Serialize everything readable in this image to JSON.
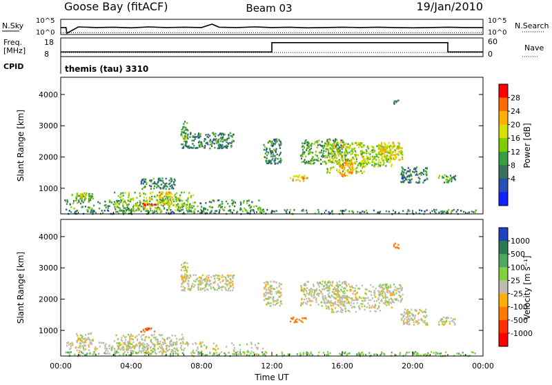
{
  "header": {
    "station": "Goose Bay (fitACF)",
    "beam": "Beam 03",
    "date": "19/Jan/2010"
  },
  "control_program": {
    "label": "CPID",
    "name": "themis (tau) 3310"
  },
  "colors": {
    "background": "#ffffff",
    "axis": "#000000",
    "ground_scatter": "#c0bcb0"
  },
  "chart_data": [
    {
      "type": "line",
      "panel": "noise",
      "left_label": "N.Sky",
      "right_label": "N.Search",
      "left_ticks": [
        "10^5",
        "10^0"
      ],
      "right_ticks": [
        "10^5",
        "10^0"
      ],
      "xlim": [
        0,
        24
      ],
      "ylim": [
        0,
        5
      ],
      "series": [
        {
          "name": "N.Sky",
          "style": "solid",
          "x": [
            0,
            0.3,
            0.35,
            1,
            2,
            3,
            4,
            5,
            6,
            7,
            8,
            8.6,
            9,
            10,
            11,
            12,
            13,
            14,
            15,
            16,
            17,
            18,
            19,
            20,
            21,
            22,
            23,
            24
          ],
          "y": [
            2.3,
            2.3,
            0.4,
            2.5,
            2.3,
            2.4,
            2.2,
            2.5,
            2.3,
            2.4,
            2.3,
            3.4,
            2.4,
            2.3,
            2.5,
            2.3,
            2.4,
            2.2,
            2.3,
            2.4,
            2.3,
            2.4,
            2.3,
            2.2,
            2.3,
            2.4,
            2.3,
            2.3
          ]
        },
        {
          "name": "N.Search",
          "style": "dotted",
          "x": [
            0,
            24
          ],
          "y": [
            0.6,
            0.6
          ]
        }
      ]
    },
    {
      "type": "line",
      "panel": "frequency",
      "left_label": "Freq.",
      "left_unit": "[MHz]",
      "right_label": "Nave",
      "left_ticks": [
        "18",
        "8"
      ],
      "right_ticks": [
        "60",
        "0"
      ],
      "xlim": [
        0,
        24
      ],
      "ylim": [
        8,
        18
      ],
      "series": [
        {
          "name": "Freq.",
          "style": "solid",
          "x": [
            0,
            12,
            12,
            22,
            22,
            24
          ],
          "y": [
            10.5,
            10.5,
            15.5,
            15.5,
            10.5,
            10.5
          ]
        },
        {
          "name": "Nave",
          "style": "dotted",
          "x": [
            0,
            24
          ],
          "y": [
            10.2,
            10.2
          ]
        }
      ]
    },
    {
      "type": "heatmap",
      "panel": "power",
      "ylabel": "Slant Range [km]",
      "ylim": [
        180,
        4550
      ],
      "yticks": [
        1000,
        2000,
        3000,
        4000
      ],
      "xlim": [
        0,
        24
      ],
      "colorbar": {
        "label": "Power [dB]",
        "ticks": [
          "28",
          "24",
          "20",
          "16",
          "12",
          "8",
          "4"
        ],
        "colors": [
          "#ff0000",
          "#ff6a00",
          "#ffb000",
          "#d8e000",
          "#80cc00",
          "#36a040",
          "#3a6f5a",
          "#2850b0",
          "#1020ff"
        ]
      },
      "patches": [
        {
          "t": [
            0.6,
            1.8
          ],
          "r": [
            600,
            900
          ],
          "power": 12
        },
        {
          "t": [
            1.0,
            1.5
          ],
          "r": [
            650,
            850
          ],
          "power": 16
        },
        {
          "t": [
            0.2,
            11.5
          ],
          "r": [
            250,
            650
          ],
          "power": 10
        },
        {
          "t": [
            3.0,
            7.5
          ],
          "r": [
            300,
            900
          ],
          "power": 14
        },
        {
          "t": [
            4.6,
            5.4
          ],
          "r": [
            380,
            560
          ],
          "power": 26
        },
        {
          "t": [
            5.5,
            6.3
          ],
          "r": [
            500,
            900
          ],
          "power": 20
        },
        {
          "t": [
            4.5,
            6.5
          ],
          "r": [
            1000,
            1350
          ],
          "power": 8
        },
        {
          "t": [
            6.8,
            9.8
          ],
          "r": [
            2300,
            2800
          ],
          "power": 8
        },
        {
          "t": [
            6.8,
            7.2
          ],
          "r": [
            2600,
            3200
          ],
          "power": 12
        },
        {
          "t": [
            11.5,
            12.5
          ],
          "r": [
            1800,
            2600
          ],
          "power": 8
        },
        {
          "t": [
            13.0,
            14.0
          ],
          "r": [
            1250,
            1450
          ],
          "power": 20
        },
        {
          "t": [
            13.6,
            16.3
          ],
          "r": [
            1800,
            2600
          ],
          "power": 10
        },
        {
          "t": [
            15.0,
            17.2
          ],
          "r": [
            1500,
            2500
          ],
          "power": 16
        },
        {
          "t": [
            15.8,
            16.6
          ],
          "r": [
            1400,
            1900
          ],
          "power": 22
        },
        {
          "t": [
            17.0,
            18.8
          ],
          "r": [
            1700,
            2400
          ],
          "power": 14
        },
        {
          "t": [
            18.0,
            19.4
          ],
          "r": [
            1900,
            2500
          ],
          "power": 18
        },
        {
          "t": [
            19.3,
            20.8
          ],
          "r": [
            1200,
            1700
          ],
          "power": 8
        },
        {
          "t": [
            21.4,
            22.4
          ],
          "r": [
            1200,
            1450
          ],
          "power": 10
        },
        {
          "t": [
            18.9,
            19.2
          ],
          "r": [
            3650,
            3850
          ],
          "power": 8
        },
        {
          "t": [
            0.2,
            23.8
          ],
          "r": [
            200,
            340
          ],
          "power": 8
        }
      ]
    },
    {
      "type": "heatmap",
      "panel": "velocity",
      "ylabel": "Slant Range [km]",
      "xlabel": "Time UT",
      "ylim": [
        180,
        4550
      ],
      "yticks": [
        1000,
        2000,
        3000,
        4000
      ],
      "xlim": [
        0,
        24
      ],
      "xticks": [
        "00:00",
        "04:00",
        "08:00",
        "12:00",
        "16:00",
        "20:00",
        "00:00"
      ],
      "colorbar": {
        "label": "Velocity [m s⁻¹]",
        "ticks": [
          "1000",
          "500",
          "100",
          "25",
          "-25",
          "-100",
          "-500",
          "-1000"
        ],
        "colors": [
          "#2040c0",
          "#2a7a50",
          "#50a860",
          "#80d040",
          "#c0bcb0",
          "#ffb000",
          "#ff7a00",
          "#ff3000",
          "#ff0000"
        ]
      },
      "patches": [
        {
          "t": [
            0.8,
            1.8
          ],
          "r": [
            600,
            950
          ],
          "velocity": 0
        },
        {
          "t": [
            0.2,
            11.5
          ],
          "r": [
            250,
            650
          ],
          "velocity": 0
        },
        {
          "t": [
            3.0,
            7.0
          ],
          "r": [
            350,
            900
          ],
          "velocity": 0
        },
        {
          "t": [
            4.5,
            5.3
          ],
          "r": [
            950,
            1100
          ],
          "velocity": -300
        },
        {
          "t": [
            6.8,
            9.8
          ],
          "r": [
            2300,
            2800
          ],
          "velocity": 0
        },
        {
          "t": [
            6.8,
            7.2
          ],
          "r": [
            2600,
            3200
          ],
          "velocity": 0
        },
        {
          "t": [
            11.5,
            12.5
          ],
          "r": [
            1800,
            2600
          ],
          "velocity": 0
        },
        {
          "t": [
            13.0,
            13.9
          ],
          "r": [
            1280,
            1450
          ],
          "velocity": -200
        },
        {
          "t": [
            13.6,
            16.3
          ],
          "r": [
            1800,
            2600
          ],
          "velocity": 0
        },
        {
          "t": [
            15.0,
            18.8
          ],
          "r": [
            1600,
            2500
          ],
          "velocity": 0
        },
        {
          "t": [
            18.0,
            19.4
          ],
          "r": [
            1900,
            2500
          ],
          "velocity": 0
        },
        {
          "t": [
            19.3,
            20.8
          ],
          "r": [
            1200,
            1700
          ],
          "velocity": 0
        },
        {
          "t": [
            21.4,
            22.4
          ],
          "r": [
            1200,
            1450
          ],
          "velocity": 0
        },
        {
          "t": [
            18.9,
            19.2
          ],
          "r": [
            3650,
            3850
          ],
          "velocity": -200
        },
        {
          "t": [
            0.2,
            23.8
          ],
          "r": [
            200,
            340
          ],
          "velocity": 60
        }
      ]
    }
  ]
}
